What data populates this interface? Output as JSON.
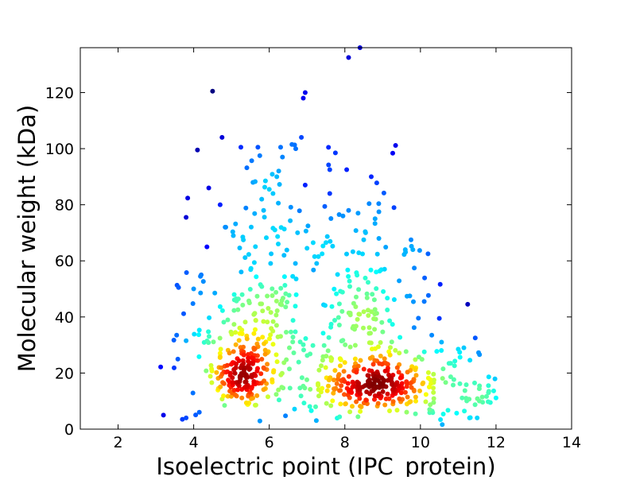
{
  "chart_data": {
    "type": "scatter",
    "title": "",
    "xlabel": "Isoelectric point (IPC_protein)",
    "ylabel": "Molecular weight (kDa)",
    "xlim": [
      1,
      14
    ],
    "ylim": [
      0,
      136
    ],
    "x_ticks": [
      2,
      4,
      6,
      8,
      10,
      12,
      14
    ],
    "y_ticks": [
      0,
      20,
      40,
      60,
      80,
      100,
      120
    ],
    "grid": false,
    "legend": "none",
    "color_scale": "jet (point density: blue = sparse, red = dense)",
    "colors": {
      "low": "#00007f",
      "mid": "#7fff7f",
      "high": "#7f0000"
    },
    "clusters": [
      {
        "cx": 5.3,
        "cy": 19,
        "sx": 0.45,
        "sy": 6,
        "n": 150
      },
      {
        "cx": 8.8,
        "cy": 16,
        "sx": 0.6,
        "sy": 5,
        "n": 200
      },
      {
        "cx": 5.6,
        "cy": 37,
        "sx": 0.7,
        "sy": 8,
        "n": 90
      },
      {
        "cx": 8.6,
        "cy": 38,
        "sx": 0.7,
        "sy": 8,
        "n": 80
      },
      {
        "cx": 7.0,
        "cy": 18,
        "sx": 0.6,
        "sy": 8,
        "n": 60
      },
      {
        "cx": 10.4,
        "cy": 17,
        "sx": 0.8,
        "sy": 7,
        "n": 70
      },
      {
        "cx": 11.3,
        "cy": 10,
        "sx": 0.5,
        "sy": 5,
        "n": 30
      },
      {
        "cx": 6.0,
        "cy": 62,
        "sx": 0.9,
        "sy": 18,
        "n": 60
      },
      {
        "cx": 8.5,
        "cy": 62,
        "sx": 0.9,
        "sy": 16,
        "n": 50
      },
      {
        "cx": 4.2,
        "cy": 30,
        "sx": 0.5,
        "sy": 18,
        "n": 25
      }
    ],
    "points": [
      [
        3.2,
        5
      ],
      [
        3.55,
        33.5
      ],
      [
        3.6,
        50.5
      ],
      [
        3.7,
        3.5
      ],
      [
        3.8,
        4
      ],
      [
        3.8,
        31.5
      ],
      [
        3.8,
        75.5
      ],
      [
        4.0,
        50
      ],
      [
        4.1,
        99.5
      ],
      [
        4.15,
        6
      ],
      [
        4.2,
        55
      ],
      [
        4.35,
        65
      ],
      [
        4.4,
        86
      ],
      [
        4.5,
        120.5
      ],
      [
        4.7,
        80
      ],
      [
        4.75,
        104
      ],
      [
        4.85,
        72
      ],
      [
        5.05,
        69
      ],
      [
        5.25,
        100.5
      ],
      [
        5.3,
        68.5
      ],
      [
        5.7,
        100.5
      ],
      [
        5.75,
        97.5
      ],
      [
        5.8,
        82
      ],
      [
        5.85,
        78
      ],
      [
        5.9,
        88.5
      ],
      [
        6.0,
        85.5
      ],
      [
        6.05,
        62.5
      ],
      [
        6.1,
        84
      ],
      [
        6.15,
        71
      ],
      [
        6.2,
        90
      ],
      [
        6.25,
        92
      ],
      [
        6.3,
        100.5
      ],
      [
        6.35,
        97
      ],
      [
        6.6,
        101.5
      ],
      [
        6.7,
        100
      ],
      [
        6.75,
        70
      ],
      [
        6.85,
        104
      ],
      [
        6.9,
        118
      ],
      [
        6.95,
        120
      ],
      [
        6.95,
        87
      ],
      [
        7.0,
        64.5
      ],
      [
        7.2,
        61.5
      ],
      [
        7.3,
        61.5
      ],
      [
        7.4,
        62.5
      ],
      [
        7.5,
        66.5
      ],
      [
        7.6,
        84
      ],
      [
        7.6,
        92.5
      ],
      [
        7.75,
        98.5
      ],
      [
        7.85,
        76.5
      ],
      [
        7.95,
        76
      ],
      [
        8.05,
        92.5
      ],
      [
        8.1,
        78
      ],
      [
        8.1,
        132.5
      ],
      [
        8.35,
        77
      ],
      [
        8.4,
        136
      ],
      [
        8.5,
        67.5
      ],
      [
        8.55,
        70
      ],
      [
        8.7,
        90
      ],
      [
        8.8,
        75
      ],
      [
        8.9,
        77.5
      ],
      [
        8.9,
        68
      ],
      [
        9.05,
        57
      ],
      [
        9.3,
        79
      ],
      [
        9.6,
        64
      ],
      [
        9.75,
        67.5
      ],
      [
        9.8,
        64
      ],
      [
        10.1,
        45.5
      ],
      [
        10.2,
        62.5
      ],
      [
        10.3,
        33.5
      ],
      [
        10.5,
        39.5
      ],
      [
        10.8,
        23.5
      ],
      [
        11.0,
        28.5
      ],
      [
        11.15,
        29
      ],
      [
        11.25,
        44.5
      ],
      [
        11.45,
        32.5
      ],
      [
        11.8,
        15.5
      ],
      [
        11.85,
        9.5
      ],
      [
        11.8,
        13
      ],
      [
        11.5,
        4
      ],
      [
        11.3,
        4
      ]
    ]
  }
}
